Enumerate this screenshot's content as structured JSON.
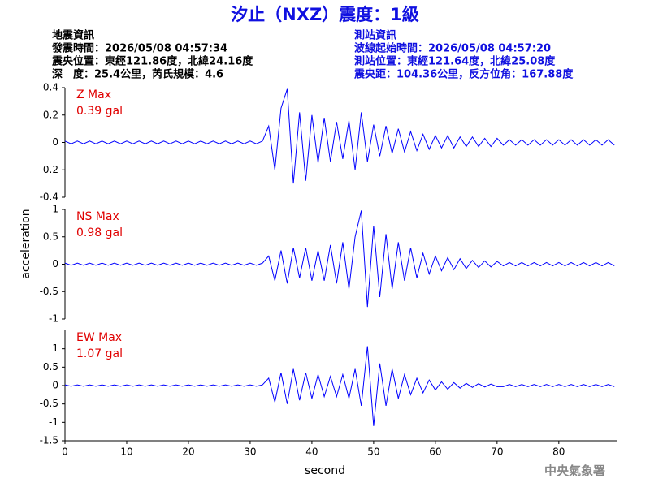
{
  "header": {
    "title": "汐止（NXZ）震度：1級",
    "left": [
      "地震資訊",
      "發震時間：2026/05/08 04:57:34",
      "震央位置：東經121.86度，北緯24.16度",
      "深　度：25.4公里，芮氏規模：4.6"
    ],
    "right": [
      "測站資訊",
      "波線起始時間：2026/05/08 04:57:20",
      "測站位置：東經121.64度，北緯25.08度",
      "震央距：104.36公里，反方位角：167.88度"
    ],
    "footer": "中央氣象署"
  },
  "chart_data": [
    {
      "type": "line",
      "annotations": [
        "Z Max",
        "0.39 gal"
      ],
      "xlim": [
        0,
        89.5
      ],
      "ylim": [
        -0.4,
        0.4
      ],
      "yticks": [
        -0.4,
        -0.2,
        0,
        0.2,
        0.4
      ],
      "x": [
        0,
        1,
        2,
        3,
        4,
        5,
        6,
        7,
        8,
        9,
        10,
        11,
        12,
        13,
        14,
        15,
        16,
        17,
        18,
        19,
        20,
        21,
        22,
        23,
        24,
        25,
        26,
        27,
        28,
        29,
        30,
        31,
        32,
        33,
        34,
        35,
        36,
        37,
        38,
        39,
        40,
        41,
        42,
        43,
        44,
        45,
        46,
        47,
        48,
        49,
        50,
        51,
        52,
        53,
        54,
        55,
        56,
        57,
        58,
        59,
        60,
        61,
        62,
        63,
        64,
        65,
        66,
        67,
        68,
        69,
        70,
        71,
        72,
        73,
        74,
        75,
        76,
        77,
        78,
        79,
        80,
        81,
        82,
        83,
        84,
        85,
        86,
        87,
        88,
        89
      ],
      "series": [
        {
          "color": "#0000ff",
          "values": [
            0.01,
            -0.01,
            0.01,
            -0.01,
            0.01,
            -0.01,
            0.01,
            -0.01,
            0.01,
            -0.01,
            0.01,
            -0.01,
            0.01,
            -0.01,
            0.01,
            -0.01,
            0.01,
            -0.01,
            0.01,
            -0.01,
            0.01,
            -0.01,
            0.01,
            -0.01,
            0.01,
            -0.01,
            0.01,
            -0.01,
            0.01,
            -0.01,
            0.01,
            -0.01,
            0.01,
            0.12,
            -0.2,
            0.25,
            0.39,
            -0.3,
            0.22,
            -0.28,
            0.2,
            -0.15,
            0.18,
            -0.14,
            0.15,
            -0.12,
            0.16,
            -0.2,
            0.22,
            -0.14,
            0.13,
            -0.1,
            0.12,
            -0.08,
            0.1,
            -0.07,
            0.08,
            -0.06,
            0.06,
            -0.05,
            0.05,
            -0.04,
            0.05,
            -0.04,
            0.04,
            -0.03,
            0.04,
            -0.03,
            0.03,
            -0.03,
            0.03,
            -0.02,
            0.02,
            -0.02,
            0.02,
            -0.02,
            0.02,
            -0.02,
            0.02,
            -0.02,
            0.02,
            -0.02,
            0.02,
            -0.02,
            0.02,
            -0.02,
            0.02,
            -0.02,
            0.02,
            -0.02
          ]
        }
      ]
    },
    {
      "type": "line",
      "annotations": [
        "NS Max",
        "0.98 gal"
      ],
      "ylabel": "acceleration",
      "xlim": [
        0,
        89.5
      ],
      "ylim": [
        -1,
        1
      ],
      "yticks": [
        -1,
        -0.5,
        0,
        0.5,
        1
      ],
      "x": [
        0,
        1,
        2,
        3,
        4,
        5,
        6,
        7,
        8,
        9,
        10,
        11,
        12,
        13,
        14,
        15,
        16,
        17,
        18,
        19,
        20,
        21,
        22,
        23,
        24,
        25,
        26,
        27,
        28,
        29,
        30,
        31,
        32,
        33,
        34,
        35,
        36,
        37,
        38,
        39,
        40,
        41,
        42,
        43,
        44,
        45,
        46,
        47,
        48,
        49,
        50,
        51,
        52,
        53,
        54,
        55,
        56,
        57,
        58,
        59,
        60,
        61,
        62,
        63,
        64,
        65,
        66,
        67,
        68,
        69,
        70,
        71,
        72,
        73,
        74,
        75,
        76,
        77,
        78,
        79,
        80,
        81,
        82,
        83,
        84,
        85,
        86,
        87,
        88,
        89
      ],
      "series": [
        {
          "color": "#0000ff",
          "values": [
            0.02,
            -0.02,
            0.02,
            -0.02,
            0.02,
            -0.02,
            0.02,
            -0.02,
            0.02,
            -0.02,
            0.02,
            -0.02,
            0.02,
            -0.02,
            0.02,
            -0.02,
            0.02,
            -0.02,
            0.02,
            -0.02,
            0.02,
            -0.02,
            0.02,
            -0.02,
            0.02,
            -0.02,
            0.02,
            -0.02,
            0.02,
            -0.02,
            0.02,
            -0.02,
            0.02,
            0.15,
            -0.3,
            0.25,
            -0.35,
            0.3,
            -0.25,
            0.3,
            -0.3,
            0.25,
            -0.3,
            0.35,
            -0.35,
            0.4,
            -0.45,
            0.5,
            0.98,
            -0.78,
            0.7,
            -0.6,
            0.55,
            -0.45,
            0.4,
            -0.3,
            0.3,
            -0.25,
            0.2,
            -0.18,
            0.15,
            -0.12,
            0.12,
            -0.1,
            0.1,
            -0.08,
            0.07,
            -0.06,
            0.06,
            -0.05,
            0.05,
            -0.03,
            0.03,
            -0.03,
            0.03,
            -0.03,
            0.03,
            -0.03,
            0.03,
            -0.03,
            0.03,
            -0.03,
            0.03,
            -0.03,
            0.03,
            -0.03,
            0.03,
            -0.03,
            0.03,
            -0.03
          ]
        }
      ]
    },
    {
      "type": "line",
      "annotations": [
        "EW Max",
        "1.07 gal"
      ],
      "xlabel": "second",
      "xlim": [
        0,
        89.5
      ],
      "xticks": [
        0,
        10,
        20,
        30,
        40,
        50,
        60,
        70,
        80
      ],
      "ylim": [
        -1.5,
        1.5
      ],
      "yticks": [
        -1.5,
        -1,
        -0.5,
        0,
        0.5,
        1
      ],
      "x": [
        0,
        1,
        2,
        3,
        4,
        5,
        6,
        7,
        8,
        9,
        10,
        11,
        12,
        13,
        14,
        15,
        16,
        17,
        18,
        19,
        20,
        21,
        22,
        23,
        24,
        25,
        26,
        27,
        28,
        29,
        30,
        31,
        32,
        33,
        34,
        35,
        36,
        37,
        38,
        39,
        40,
        41,
        42,
        43,
        44,
        45,
        46,
        47,
        48,
        49,
        50,
        51,
        52,
        53,
        54,
        55,
        56,
        57,
        58,
        59,
        60,
        61,
        62,
        63,
        64,
        65,
        66,
        67,
        68,
        69,
        70,
        71,
        72,
        73,
        74,
        75,
        76,
        77,
        78,
        79,
        80,
        81,
        82,
        83,
        84,
        85,
        86,
        87,
        88,
        89
      ],
      "series": [
        {
          "color": "#0000ff",
          "values": [
            0.02,
            -0.02,
            0.02,
            -0.02,
            0.02,
            -0.02,
            0.02,
            -0.02,
            0.02,
            -0.02,
            0.02,
            -0.02,
            0.02,
            -0.02,
            0.02,
            -0.02,
            0.02,
            -0.02,
            0.02,
            -0.02,
            0.02,
            -0.02,
            0.02,
            -0.02,
            0.02,
            -0.02,
            0.02,
            -0.02,
            0.02,
            -0.02,
            0.02,
            -0.02,
            0.02,
            0.2,
            -0.45,
            0.35,
            -0.5,
            0.45,
            -0.4,
            0.35,
            -0.35,
            0.3,
            -0.3,
            0.25,
            -0.3,
            0.3,
            -0.35,
            0.45,
            -0.55,
            1.07,
            -1.1,
            0.6,
            -0.55,
            0.45,
            -0.35,
            0.3,
            -0.25,
            0.2,
            -0.2,
            0.15,
            -0.12,
            0.1,
            -0.1,
            0.08,
            -0.07,
            0.06,
            -0.05,
            0.05,
            -0.04,
            0.04,
            -0.03,
            -0.03,
            0.03,
            -0.03,
            0.03,
            -0.03,
            0.03,
            -0.03,
            0.03,
            -0.03,
            0.03,
            -0.03,
            0.03,
            -0.03,
            0.03,
            -0.03,
            0.03,
            -0.03,
            0.03,
            -0.03
          ]
        }
      ]
    }
  ]
}
